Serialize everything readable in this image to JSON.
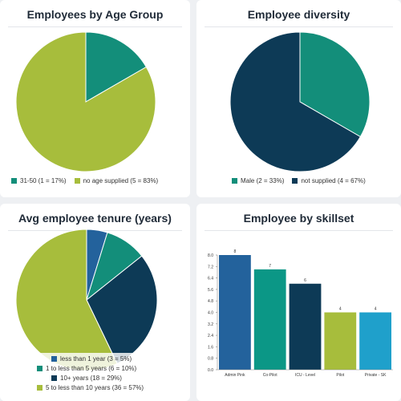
{
  "colors": {
    "teal": "#138e7a",
    "lime": "#a7bd3c",
    "navy": "#0d3a56",
    "blue": "#23629c",
    "darkteal": "#0b9786",
    "cyan": "#1fa0cb"
  },
  "chart_data": [
    {
      "type": "pie",
      "title": "Employees by Age Group",
      "slices": [
        {
          "label": "31-50 (1 = 17%)",
          "value": 1,
          "percent": 17,
          "color": "#138e7a"
        },
        {
          "label": "no age supplied (5 = 83%)",
          "value": 5,
          "percent": 83,
          "color": "#a7bd3c"
        }
      ],
      "legend": "bottom"
    },
    {
      "type": "pie",
      "title": "Employee diversity",
      "slices": [
        {
          "label": "Male (2 = 33%)",
          "value": 2,
          "percent": 33,
          "color": "#138e7a"
        },
        {
          "label": "not supplied (4 = 67%)",
          "value": 4,
          "percent": 67,
          "color": "#0d3a56"
        }
      ],
      "legend": "bottom"
    },
    {
      "type": "pie",
      "title": "Avg employee tenure (years)",
      "slices": [
        {
          "label": "less than 1 year (3 = 5%)",
          "value": 3,
          "percent": 5,
          "color": "#23629c"
        },
        {
          "label": "1 to less than 5 years (6 = 10%)",
          "value": 6,
          "percent": 10,
          "color": "#138e7a"
        },
        {
          "label": "10+ years (18 = 29%)",
          "value": 18,
          "percent": 29,
          "color": "#0d3a56"
        },
        {
          "label": "5 to less than 10 years (36 = 57%)",
          "value": 36,
          "percent": 57,
          "color": "#a7bd3c"
        }
      ],
      "legend": "bottom"
    },
    {
      "type": "bar",
      "title": "Employee by skillset",
      "categories": [
        "Admin Pink",
        "Co-Pilot",
        "ICU - Level",
        "Pilot",
        "Private - SK"
      ],
      "values": [
        8,
        7,
        6,
        4,
        4
      ],
      "value_labels": [
        "8",
        "7",
        "6",
        "4",
        "4"
      ],
      "colors": [
        "#23629c",
        "#0b9786",
        "#0d3a56",
        "#a7bd3c",
        "#1fa0cb"
      ],
      "ylim": [
        0,
        8
      ],
      "yticks": [
        "0.0",
        "0.8",
        "1.6",
        "2.4",
        "3.2",
        "4.0",
        "4.8",
        "5.6",
        "6.4",
        "7.2",
        "8.0"
      ]
    }
  ]
}
